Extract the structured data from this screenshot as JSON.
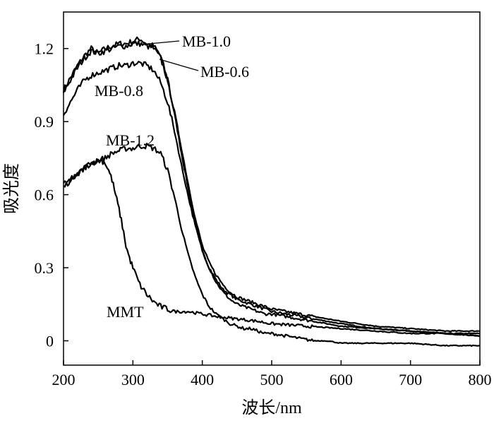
{
  "chart_data": {
    "type": "line",
    "title": "",
    "xlabel": "波长/nm",
    "ylabel": "吸光度",
    "xlim": [
      200,
      800
    ],
    "ylim": [
      -0.1,
      1.35
    ],
    "xticks": [
      200,
      300,
      400,
      500,
      600,
      700,
      800
    ],
    "yticks": [
      0,
      0.3,
      0.6,
      0.9,
      1.2
    ],
    "xtick_labels": [
      "200",
      "300",
      "400",
      "500",
      "600",
      "700",
      "800"
    ],
    "ytick_labels": [
      "0",
      "0.3",
      "0.6",
      "0.9",
      "1.2"
    ],
    "grid": false,
    "legend": "none",
    "series": [
      {
        "name": "MB-1.0",
        "x": [
          200,
          210,
          220,
          230,
          240,
          250,
          260,
          270,
          280,
          290,
          300,
          310,
          320,
          330,
          340,
          350,
          360,
          370,
          380,
          390,
          400,
          410,
          420,
          430,
          440,
          450,
          460,
          470,
          480,
          490,
          500,
          520,
          540,
          560,
          580,
          600,
          650,
          700,
          750,
          800
        ],
        "y": [
          1.03,
          1.08,
          1.13,
          1.17,
          1.2,
          1.18,
          1.2,
          1.21,
          1.22,
          1.22,
          1.23,
          1.24,
          1.22,
          1.21,
          1.17,
          1.07,
          0.93,
          0.77,
          0.62,
          0.48,
          0.37,
          0.3,
          0.25,
          0.21,
          0.19,
          0.17,
          0.16,
          0.15,
          0.14,
          0.13,
          0.12,
          0.11,
          0.1,
          0.09,
          0.08,
          0.07,
          0.05,
          0.04,
          0.03,
          0.03
        ]
      },
      {
        "name": "MB-0.6",
        "x": [
          200,
          210,
          220,
          230,
          240,
          250,
          260,
          270,
          280,
          290,
          300,
          310,
          320,
          330,
          340,
          350,
          360,
          370,
          380,
          390,
          400,
          410,
          420,
          430,
          440,
          450,
          460,
          470,
          480,
          490,
          500,
          520,
          540,
          560,
          580,
          600,
          650,
          700,
          750,
          800
        ],
        "y": [
          1.02,
          1.07,
          1.12,
          1.16,
          1.19,
          1.18,
          1.19,
          1.2,
          1.21,
          1.21,
          1.22,
          1.22,
          1.21,
          1.2,
          1.16,
          1.07,
          0.94,
          0.79,
          0.64,
          0.5,
          0.39,
          0.32,
          0.27,
          0.23,
          0.2,
          0.18,
          0.17,
          0.16,
          0.15,
          0.14,
          0.13,
          0.12,
          0.11,
          0.1,
          0.09,
          0.08,
          0.06,
          0.05,
          0.04,
          0.04
        ]
      },
      {
        "name": "MB-0.8",
        "x": [
          200,
          210,
          220,
          230,
          240,
          250,
          260,
          270,
          280,
          290,
          300,
          310,
          320,
          330,
          340,
          350,
          360,
          370,
          380,
          390,
          400,
          410,
          420,
          430,
          440,
          450,
          460,
          470,
          480,
          490,
          500,
          520,
          540,
          560,
          580,
          600,
          650,
          700,
          750,
          800
        ],
        "y": [
          0.93,
          0.98,
          1.03,
          1.07,
          1.09,
          1.1,
          1.11,
          1.12,
          1.13,
          1.13,
          1.14,
          1.14,
          1.13,
          1.11,
          1.06,
          0.98,
          0.86,
          0.72,
          0.59,
          0.47,
          0.37,
          0.3,
          0.24,
          0.2,
          0.17,
          0.15,
          0.14,
          0.13,
          0.12,
          0.11,
          0.11,
          0.1,
          0.09,
          0.08,
          0.07,
          0.06,
          0.05,
          0.04,
          0.03,
          0.02
        ]
      },
      {
        "name": "MB-1.2",
        "x": [
          200,
          210,
          220,
          230,
          240,
          250,
          260,
          270,
          280,
          290,
          300,
          310,
          320,
          330,
          340,
          350,
          360,
          370,
          380,
          390,
          400,
          410,
          420,
          430,
          440,
          450,
          460,
          470,
          480,
          490,
          500,
          520,
          540,
          560,
          580,
          600,
          650,
          700,
          750,
          800
        ],
        "y": [
          0.63,
          0.66,
          0.69,
          0.71,
          0.73,
          0.74,
          0.75,
          0.77,
          0.78,
          0.79,
          0.79,
          0.8,
          0.8,
          0.79,
          0.77,
          0.7,
          0.59,
          0.46,
          0.35,
          0.26,
          0.19,
          0.14,
          0.11,
          0.09,
          0.07,
          0.06,
          0.05,
          0.05,
          0.04,
          0.03,
          0.03,
          0.02,
          0.01,
          0.0,
          0.0,
          -0.01,
          -0.01,
          -0.01,
          -0.02,
          -0.02
        ]
      },
      {
        "name": "MMT",
        "x": [
          200,
          210,
          220,
          230,
          240,
          250,
          255,
          260,
          265,
          270,
          275,
          280,
          285,
          290,
          295,
          300,
          310,
          320,
          330,
          340,
          350,
          360,
          370,
          380,
          400,
          420,
          450,
          480,
          500,
          550,
          600,
          650,
          700,
          750,
          800
        ],
        "y": [
          0.64,
          0.66,
          0.68,
          0.71,
          0.73,
          0.74,
          0.74,
          0.73,
          0.7,
          0.66,
          0.6,
          0.54,
          0.47,
          0.39,
          0.34,
          0.3,
          0.23,
          0.19,
          0.16,
          0.14,
          0.13,
          0.12,
          0.12,
          0.12,
          0.11,
          0.1,
          0.09,
          0.08,
          0.07,
          0.06,
          0.05,
          0.04,
          0.03,
          0.03,
          0.02
        ]
      }
    ],
    "annotations": [
      {
        "text": "MB-1.0",
        "target_series": "MB-1.0",
        "leader": true
      },
      {
        "text": "MB-0.6",
        "target_series": "MB-0.6",
        "leader": true
      },
      {
        "text": "MB-0.8",
        "target_series": "MB-0.8",
        "leader": false
      },
      {
        "text": "MB-1.2",
        "target_series": "MB-1.2",
        "leader": false
      },
      {
        "text": "MMT",
        "target_series": "MMT",
        "leader": false
      }
    ]
  }
}
